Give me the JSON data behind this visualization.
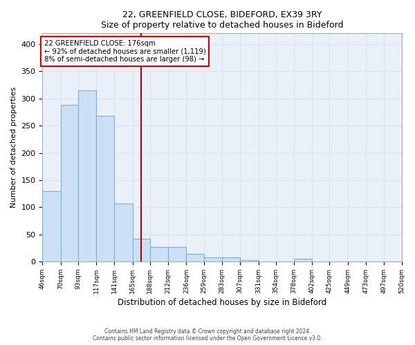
{
  "title1": "22, GREENFIELD CLOSE, BIDEFORD, EX39 3RY",
  "title2": "Size of property relative to detached houses in Bideford",
  "xlabel": "Distribution of detached houses by size in Bideford",
  "ylabel": "Number of detached properties",
  "bar_edges": [
    46,
    70,
    93,
    117,
    141,
    165,
    188,
    212,
    236,
    259,
    283,
    307,
    331,
    354,
    378,
    402,
    425,
    449,
    473,
    497,
    520
  ],
  "bar_heights": [
    130,
    288,
    315,
    268,
    107,
    42,
    27,
    26,
    14,
    8,
    7,
    3,
    0,
    0,
    5,
    0,
    0,
    0,
    0,
    0
  ],
  "bar_color": "#cce0f5",
  "bar_edge_color": "#7ab0d8",
  "vline_x": 176,
  "vline_color": "#aa0000",
  "annotation_text": "22 GREENFIELD CLOSE: 176sqm\n← 92% of detached houses are smaller (1,119)\n8% of semi-detached houses are larger (98) →",
  "annotation_box_color": "#ffffff",
  "annotation_box_edge": "#cc0000",
  "ylim": [
    0,
    420
  ],
  "yticks": [
    0,
    50,
    100,
    150,
    200,
    250,
    300,
    350,
    400
  ],
  "background_color": "#eaf0f8",
  "grid_color": "#d8e4f0",
  "footnote1": "Contains HM Land Registry data © Crown copyright and database right 2024.",
  "footnote2": "Contains public sector information licensed under the Open Government Licence v3.0."
}
